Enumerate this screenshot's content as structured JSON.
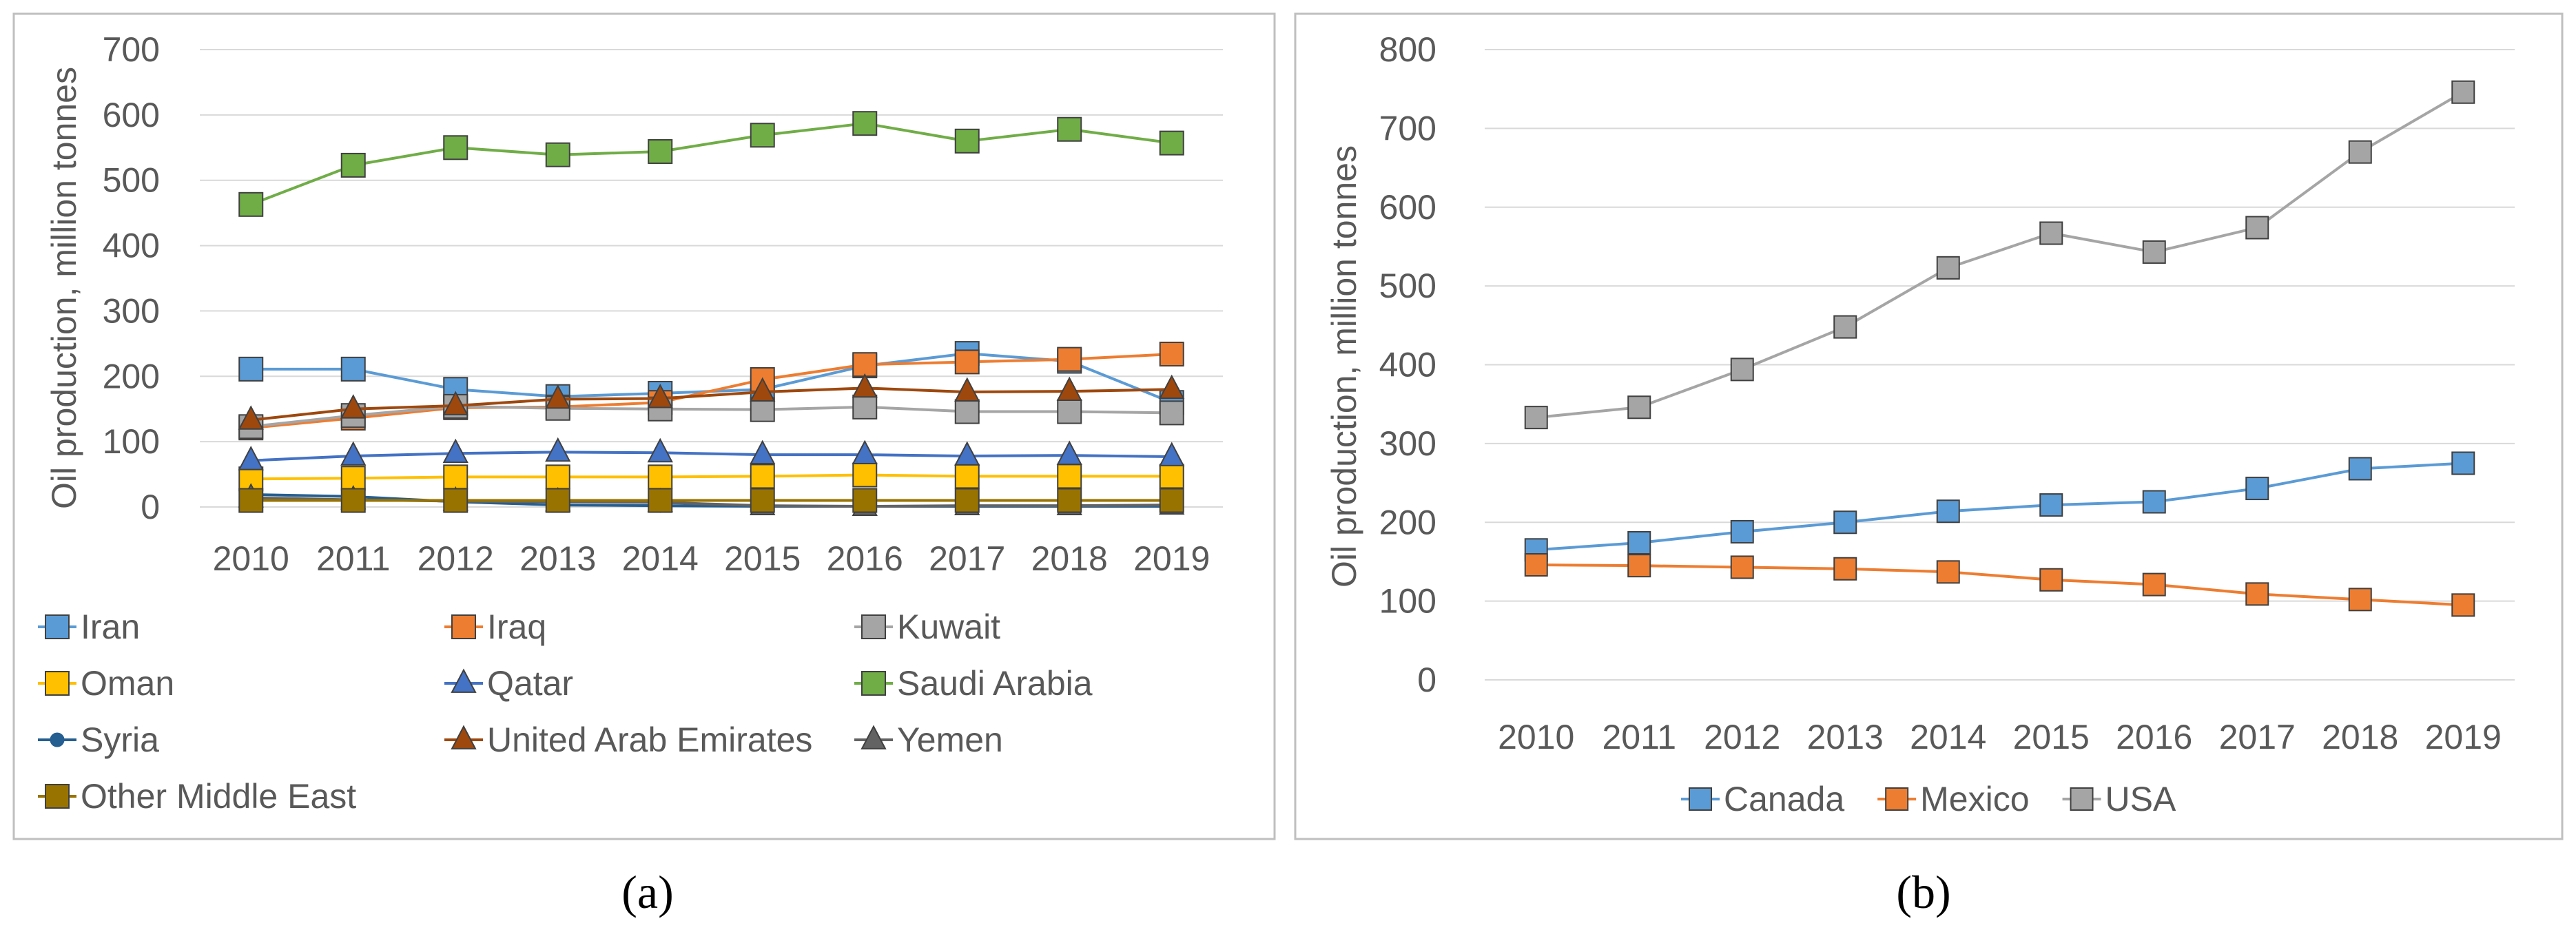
{
  "chart_data": [
    {
      "id": "a",
      "type": "line",
      "caption": "(a)",
      "ylabel": "Oil production, million tonnes",
      "ylim": [
        0,
        700
      ],
      "yticks": [
        0,
        100,
        200,
        300,
        400,
        500,
        600,
        700
      ],
      "grid": true,
      "legend_position": "bottom",
      "categories": [
        "2010",
        "2011",
        "2012",
        "2013",
        "2014",
        "2015",
        "2016",
        "2017",
        "2018",
        "2019"
      ],
      "series": [
        {
          "name": "Iran",
          "color": "#5b9bd5",
          "marker": "square",
          "values": [
            211,
            211,
            180,
            169,
            174,
            180,
            216,
            235,
            223,
            160
          ]
        },
        {
          "name": "Iraq",
          "color": "#ed7d31",
          "marker": "square",
          "values": [
            121,
            136,
            152,
            153,
            160,
            195,
            218,
            222,
            226,
            234
          ]
        },
        {
          "name": "Kuwait",
          "color": "#a5a5a5",
          "marker": "square",
          "values": [
            123,
            140,
            154,
            151,
            150,
            149,
            153,
            146,
            146,
            144
          ]
        },
        {
          "name": "Oman",
          "color": "#ffc000",
          "marker": "square",
          "values": [
            43,
            44,
            46,
            46,
            46,
            47,
            49,
            47,
            47,
            47
          ]
        },
        {
          "name": "Qatar",
          "color": "#4472c4",
          "marker": "triangle",
          "values": [
            71,
            78,
            82,
            84,
            83,
            80,
            80,
            78,
            79,
            77
          ]
        },
        {
          "name": "Saudi Arabia",
          "color": "#70ad47",
          "marker": "square",
          "values": [
            463,
            523,
            550,
            539,
            544,
            569,
            587,
            560,
            578,
            557
          ]
        },
        {
          "name": "Syria",
          "color": "#255e91",
          "marker": "circle",
          "values": [
            19,
            16,
            8,
            3,
            2,
            1,
            1,
            1,
            1,
            1
          ]
        },
        {
          "name": "United Arab Emirates",
          "color": "#9e480e",
          "marker": "triangle",
          "values": [
            133,
            150,
            155,
            165,
            166,
            176,
            182,
            176,
            177,
            180
          ]
        },
        {
          "name": "Yemen",
          "color": "#636363",
          "marker": "triangle",
          "values": [
            14,
            11,
            9,
            8,
            7,
            2,
            1,
            2,
            2,
            3
          ]
        },
        {
          "name": "Other Middle East",
          "color": "#997300",
          "marker": "square",
          "values": [
            10,
            10,
            10,
            10,
            10,
            10,
            10,
            10,
            10,
            10
          ]
        }
      ]
    },
    {
      "id": "b",
      "type": "line",
      "caption": "(b)",
      "ylabel": "Oil production, million tonnes",
      "ylim": [
        0,
        800
      ],
      "yticks": [
        0,
        100,
        200,
        300,
        400,
        500,
        600,
        700,
        800
      ],
      "grid": true,
      "legend_position": "bottom",
      "categories": [
        "2010",
        "2011",
        "2012",
        "2013",
        "2014",
        "2015",
        "2016",
        "2017",
        "2018",
        "2019"
      ],
      "series": [
        {
          "name": "Canada",
          "color": "#5b9bd5",
          "marker": "square",
          "values": [
            165,
            174,
            188,
            200,
            214,
            222,
            226,
            243,
            268,
            275
          ]
        },
        {
          "name": "Mexico",
          "color": "#ed7d31",
          "marker": "square",
          "values": [
            146,
            145,
            143,
            141,
            137,
            127,
            121,
            109,
            102,
            95
          ]
        },
        {
          "name": "USA",
          "color": "#a5a5a5",
          "marker": "square",
          "values": [
            333,
            346,
            394,
            448,
            523,
            567,
            543,
            574,
            670,
            746
          ]
        }
      ]
    }
  ]
}
